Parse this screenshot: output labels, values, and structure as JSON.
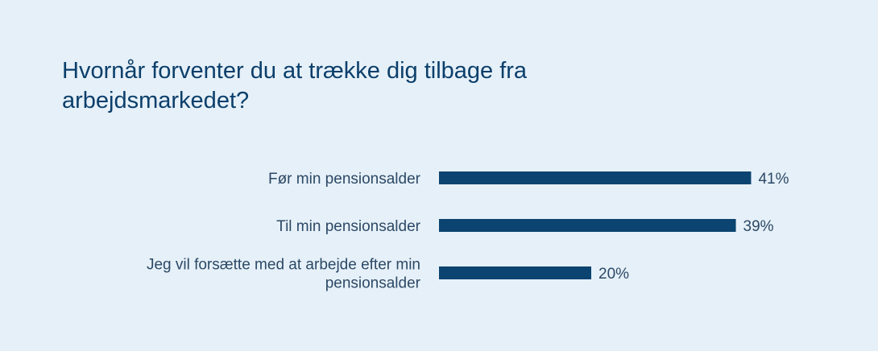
{
  "title": "Hvornår forventer du at trække dig tilbage fra arbejdsmarkedet?",
  "colors": {
    "background": "#e6f0f8",
    "bar": "#0b4470",
    "title": "#0b3f6b",
    "label": "#2c4966"
  },
  "chart_data": {
    "type": "bar",
    "orientation": "horizontal",
    "title": "Hvornår forventer du at trække dig tilbage fra arbejdsmarkedet?",
    "categories": [
      "Før min pensionsalder",
      "Til min pensionsalder",
      "Jeg vil forsætte med at arbejde efter min pensionsalder"
    ],
    "category_lines": [
      [
        "Før min pensionsalder"
      ],
      [
        "Til min pensionsalder"
      ],
      [
        "Jeg vil forsætte med at arbejde efter min",
        "pensionsalder"
      ]
    ],
    "values": [
      41,
      39,
      20
    ],
    "value_labels": [
      "41%",
      "39%",
      "20%"
    ],
    "unit": "%",
    "xlim": [
      0,
      100
    ],
    "grid": false,
    "legend": "none"
  }
}
